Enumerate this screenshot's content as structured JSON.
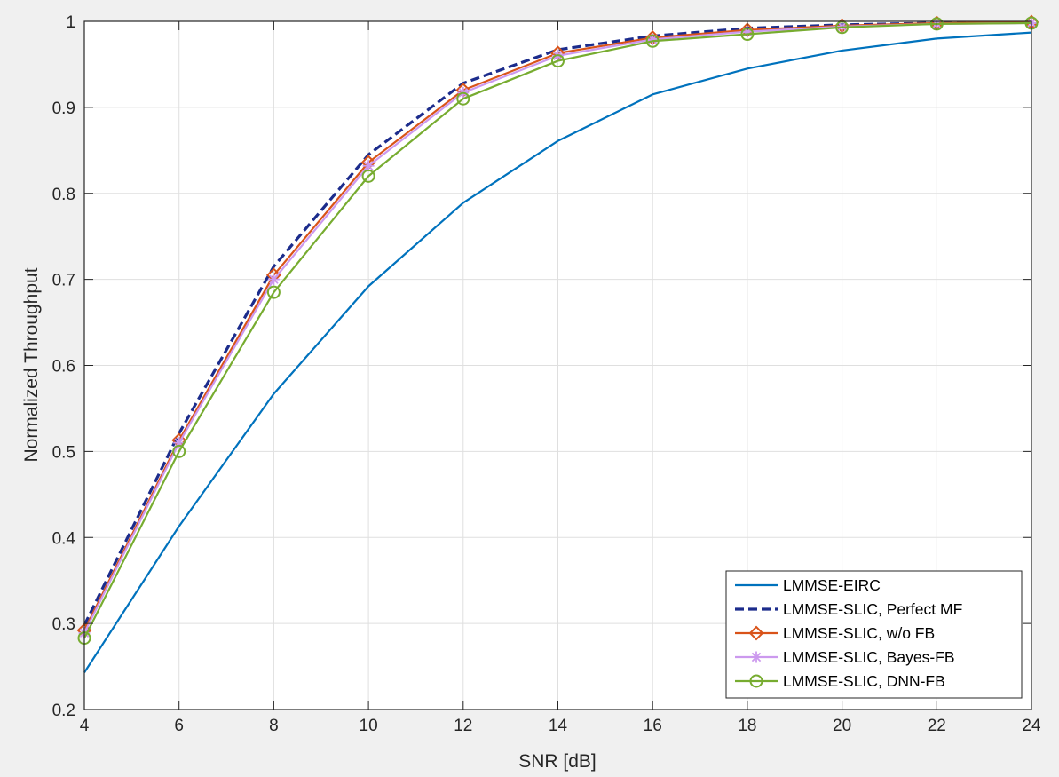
{
  "chart_data": {
    "type": "line",
    "title": "",
    "xlabel": "SNR [dB]",
    "ylabel": "Normalized Throughput",
    "xlim": [
      4,
      24
    ],
    "ylim": [
      0.2,
      1
    ],
    "xticks": [
      4,
      6,
      8,
      10,
      12,
      14,
      16,
      18,
      20,
      22,
      24
    ],
    "yticks": [
      0.2,
      0.3,
      0.4,
      0.5,
      0.6,
      0.7,
      0.8,
      0.9,
      1
    ],
    "ytick_labels": [
      "0.2",
      "0.3",
      "0.4",
      "0.5",
      "0.6",
      "0.7",
      "0.8",
      "0.9",
      "1"
    ],
    "grid": true,
    "legend_position": "bottom-right",
    "x": [
      4,
      6,
      8,
      10,
      12,
      14,
      16,
      18,
      20,
      22,
      24
    ],
    "series": [
      {
        "name": "LMMSE-EIRC",
        "color": "#0072bd",
        "dash": "solid",
        "marker": "none",
        "values": [
          0.243,
          0.413,
          0.567,
          0.692,
          0.789,
          0.861,
          0.915,
          0.945,
          0.966,
          0.98,
          0.987
        ]
      },
      {
        "name": "LMMSE-SLIC, Perfect MF",
        "color": "#1c2c8c",
        "dash": "dashed",
        "marker": "none",
        "values": [
          0.298,
          0.521,
          0.715,
          0.845,
          0.928,
          0.967,
          0.983,
          0.992,
          0.996,
          0.998,
          0.999
        ]
      },
      {
        "name": "LMMSE-SLIC, w/o FB",
        "color": "#d95319",
        "dash": "solid",
        "marker": "diamond",
        "values": [
          0.292,
          0.513,
          0.705,
          0.836,
          0.92,
          0.963,
          0.981,
          0.99,
          0.995,
          0.998,
          0.999
        ]
      },
      {
        "name": "LMMSE-SLIC, Bayes-FB",
        "color": "#cc99ee",
        "dash": "solid",
        "marker": "asterisk",
        "values": [
          0.289,
          0.51,
          0.7,
          0.832,
          0.917,
          0.96,
          0.979,
          0.988,
          0.994,
          0.997,
          0.998
        ]
      },
      {
        "name": "LMMSE-SLIC, DNN-FB",
        "color": "#77ac30",
        "dash": "solid",
        "marker": "circle",
        "values": [
          0.283,
          0.5,
          0.685,
          0.82,
          0.91,
          0.954,
          0.977,
          0.985,
          0.993,
          0.997,
          0.998
        ]
      }
    ]
  }
}
